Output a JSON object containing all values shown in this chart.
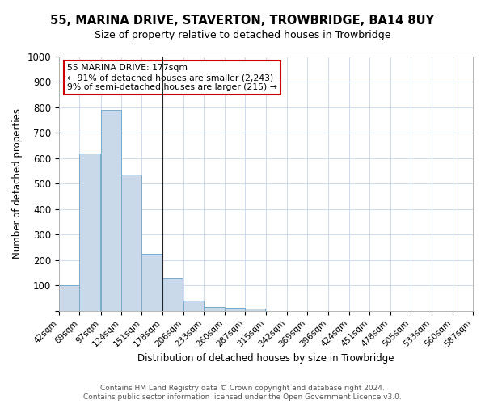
{
  "title": "55, MARINA DRIVE, STAVERTON, TROWBRIDGE, BA14 8UY",
  "subtitle": "Size of property relative to detached houses in Trowbridge",
  "xlabel": "Distribution of detached houses by size in Trowbridge",
  "ylabel": "Number of detached properties",
  "bar_color": "#c9d9ea",
  "bar_edge_color": "#7aaac8",
  "grid_color": "#c8d4e8",
  "annotation_box_color": "#cc0000",
  "annotation_line1": "55 MARINA DRIVE: 177sqm",
  "annotation_line2": "← 91% of detached houses are smaller (2,243)",
  "annotation_line3": "9% of semi-detached houses are larger (215) →",
  "property_line_x": 178,
  "bin_edges": [
    42,
    69,
    97,
    124,
    151,
    178,
    206,
    233,
    260,
    287,
    315,
    342,
    369,
    396,
    424,
    451,
    478,
    505,
    533,
    560,
    587
  ],
  "values": [
    100,
    620,
    790,
    535,
    225,
    130,
    42,
    15,
    13,
    10,
    0,
    0,
    0,
    0,
    0,
    0,
    0,
    0,
    0,
    0
  ],
  "ylim": [
    0,
    1000
  ],
  "yticks": [
    0,
    100,
    200,
    300,
    400,
    500,
    600,
    700,
    800,
    900,
    1000
  ],
  "footer1": "Contains HM Land Registry data © Crown copyright and database right 2024.",
  "footer2": "Contains public sector information licensed under the Open Government Licence v3.0."
}
